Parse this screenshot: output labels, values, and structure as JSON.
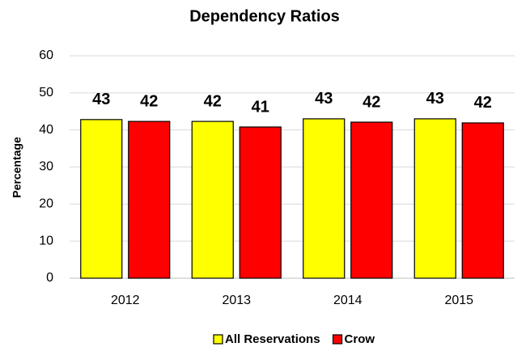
{
  "chart_data": {
    "type": "bar",
    "title": "Dependency Ratios",
    "y_label": "Percentage",
    "categories": [
      "2012",
      "2013",
      "2014",
      "2015"
    ],
    "series": [
      {
        "name": "All Reservations",
        "color": "#ffff00",
        "values": [
          42.8,
          42.3,
          43.0,
          43.0
        ],
        "value_labels": [
          "43",
          "42",
          "43",
          "43"
        ]
      },
      {
        "name": "Crow",
        "color": "#ff0000",
        "values": [
          42.3,
          40.8,
          42.1,
          41.9
        ],
        "value_labels": [
          "42",
          "41",
          "42",
          "42"
        ]
      }
    ],
    "ylim": [
      0,
      60
    ],
    "yticks": [
      0,
      10,
      20,
      30,
      40,
      50,
      60
    ],
    "grid": true,
    "legend": "bottom"
  }
}
